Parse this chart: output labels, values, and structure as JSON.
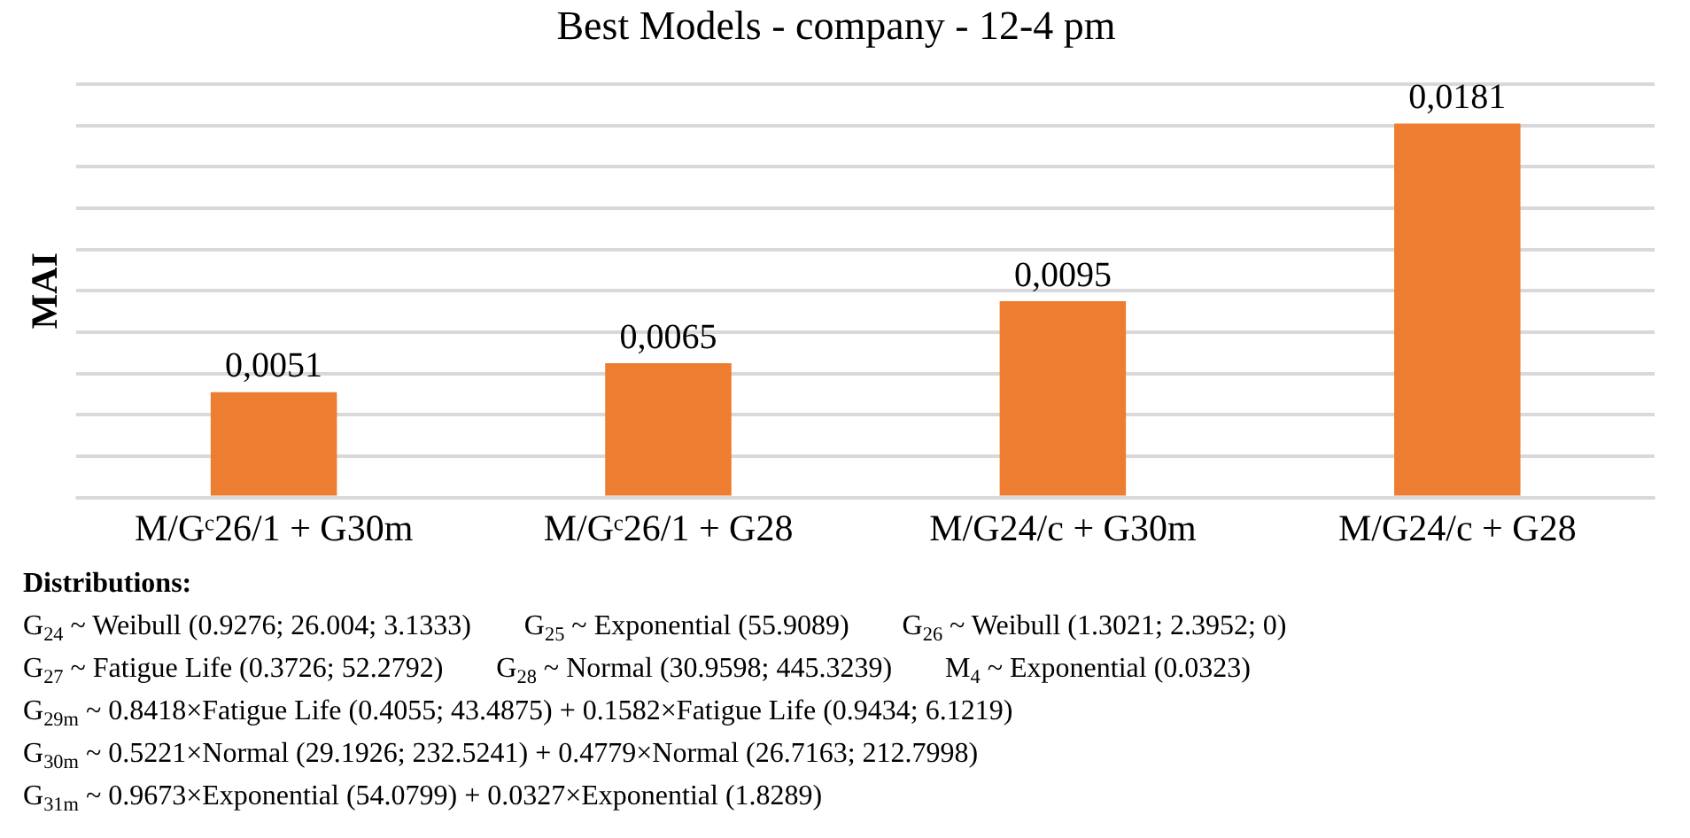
{
  "chart_data": {
    "type": "bar",
    "title": "Best Models - company - 12-4 pm",
    "ylabel": "MAI",
    "categories": [
      "M/Gᶜ26/1 + G30m",
      "M/Gᶜ26/1 + G28",
      "M/G24/c + G30m",
      "M/G24/c + G28"
    ],
    "values": [
      0.0051,
      0.0065,
      0.0095,
      0.0181
    ],
    "value_labels": [
      "0,0051",
      "0,0065",
      "0,0095",
      "0,0181"
    ],
    "color": "#ed7d31",
    "ylim": [
      0,
      0.02
    ],
    "yticks": [
      {
        "value": 0,
        "label": null
      },
      {
        "value": 0.002,
        "label": null
      },
      {
        "value": 0.004,
        "label": null
      },
      {
        "value": 0.006,
        "label": null
      },
      {
        "value": 0.008,
        "label": null
      },
      {
        "value": 0.01,
        "label": null
      },
      {
        "value": 0.012,
        "label": null
      },
      {
        "value": 0.014,
        "label": null
      },
      {
        "value": 0.016,
        "label": null
      },
      {
        "value": 0.018,
        "label": null
      },
      {
        "value": 0.02,
        "label": null
      }
    ],
    "tick_labels": "x",
    "grid": "y",
    "legend": false,
    "annotations": [
      "Distributions:",
      "G$_{24}$ ~ Weibull (0.9276; 26.004; 3.1333)",
      "G$_{25}$ ~ Exponential (55.9089)",
      "G$_{26}$ ~ Weibull (1.3021; 2.3952; 0)",
      "G$_{27}$ ~ Fatigue Life (0.3726; 52.2792)",
      "G$_{28}$ ~ Normal (30.9598; 445.3239)",
      "M$_{4}$ ~ Exponential (0.0323)",
      "G$_{29m}$ ~ 0.8418×Fatigue Life (0.4055; 43.4875) + 0.1582×Fatigue Life (0.9434; 6.1219)",
      "G$_{30m}$ ~ 0.5221×Normal (29.1926; 232.5241) + 0.4779×Normal (26.7163; 212.7998)",
      "G$_{31m}$ ~ 0.9673×Exponential (54.0799) + 0.0327×Exponential (1.8289)"
    ]
  }
}
